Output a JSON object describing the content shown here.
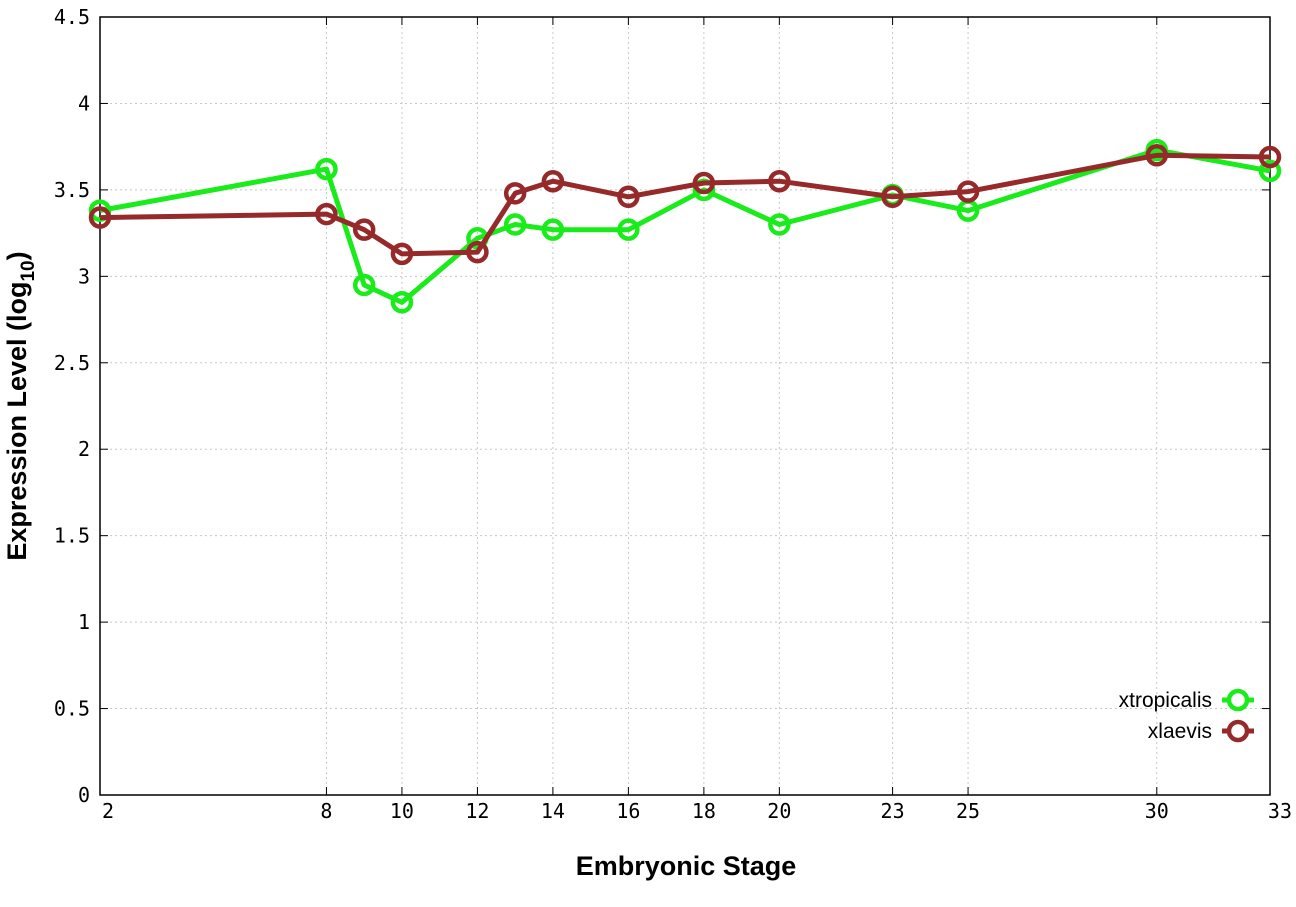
{
  "chart_data": {
    "type": "line",
    "xlabel": "Embryonic Stage",
    "ylabel_main": "Expression Level (log",
    "ylabel_sub": "10",
    "ylabel_close": ")",
    "x": [
      2,
      8,
      9,
      10,
      12,
      13,
      14,
      16,
      18,
      20,
      23,
      25,
      30,
      33
    ],
    "x_ticks": [
      2,
      8,
      10,
      12,
      14,
      16,
      18,
      20,
      23,
      25,
      30,
      33
    ],
    "y_ticks": [
      "0",
      "0.5",
      "1",
      "1.5",
      "2",
      "2.5",
      "3",
      "3.5",
      "4",
      "4.5"
    ],
    "xlim": [
      2,
      33
    ],
    "ylim": [
      0,
      4.5
    ],
    "grid": true,
    "legend_position": "bottom-right",
    "series": [
      {
        "name": "xtropicalis",
        "color": "#1aeb1a",
        "values": [
          3.38,
          3.62,
          2.95,
          2.85,
          3.22,
          3.3,
          3.27,
          3.27,
          3.5,
          3.3,
          3.47,
          3.38,
          3.73,
          3.61
        ]
      },
      {
        "name": "xlaevis",
        "color": "#962a2a",
        "values": [
          3.34,
          3.36,
          3.27,
          3.13,
          3.14,
          3.48,
          3.55,
          3.46,
          3.54,
          3.55,
          3.46,
          3.49,
          3.7,
          3.69
        ]
      }
    ]
  }
}
